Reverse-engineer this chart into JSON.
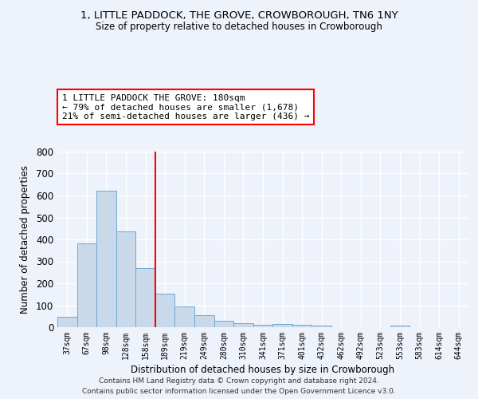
{
  "title": "1, LITTLE PADDOCK, THE GROVE, CROWBOROUGH, TN6 1NY",
  "subtitle": "Size of property relative to detached houses in Crowborough",
  "xlabel": "Distribution of detached houses by size in Crowborough",
  "ylabel": "Number of detached properties",
  "bar_color": "#c9d9ea",
  "bar_edge_color": "#6fa8d0",
  "background_color": "#eef2fa",
  "grid_color": "#ffffff",
  "categories": [
    "37sqm",
    "67sqm",
    "98sqm",
    "128sqm",
    "158sqm",
    "189sqm",
    "219sqm",
    "249sqm",
    "280sqm",
    "310sqm",
    "341sqm",
    "371sqm",
    "401sqm",
    "432sqm",
    "462sqm",
    "492sqm",
    "523sqm",
    "553sqm",
    "583sqm",
    "614sqm",
    "644sqm"
  ],
  "values": [
    48,
    383,
    623,
    437,
    268,
    153,
    95,
    55,
    30,
    17,
    10,
    13,
    11,
    7,
    0,
    0,
    0,
    8,
    0,
    0,
    0
  ],
  "ylim": [
    0,
    800
  ],
  "yticks": [
    0,
    100,
    200,
    300,
    400,
    500,
    600,
    700,
    800
  ],
  "red_line_x": 5.0,
  "annotation_text": "1 LITTLE PADDOCK THE GROVE: 180sqm\n← 79% of detached houses are smaller (1,678)\n21% of semi-detached houses are larger (436) →",
  "footer_line1": "Contains HM Land Registry data © Crown copyright and database right 2024.",
  "footer_line2": "Contains public sector information licensed under the Open Government Licence v3.0."
}
